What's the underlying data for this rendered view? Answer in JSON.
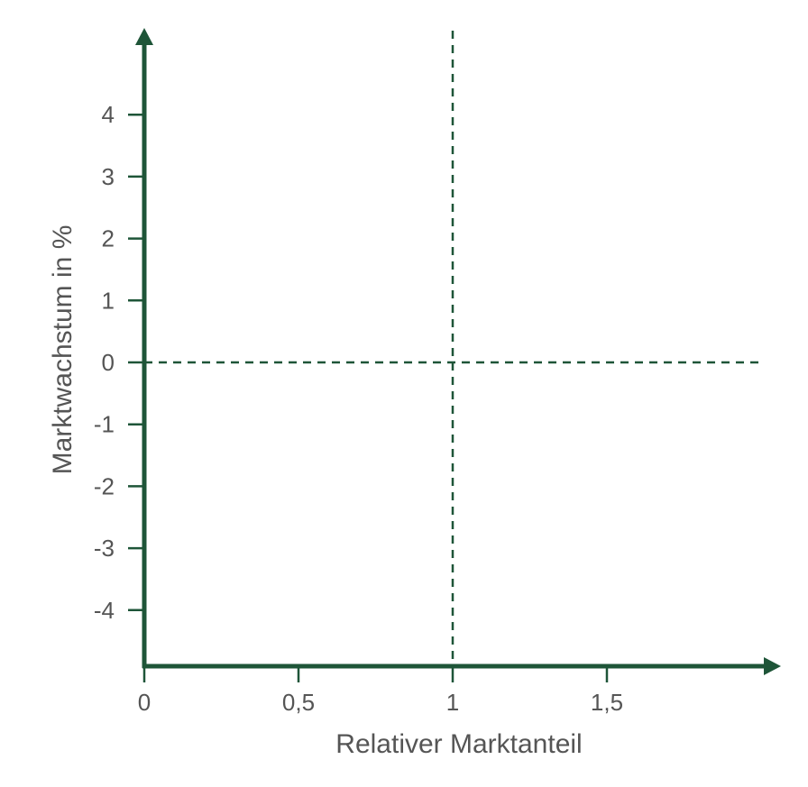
{
  "chart_data": {
    "type": "scatter",
    "title": "",
    "xlabel": "Relativer Marktanteil",
    "ylabel": "Marktwachstum in %",
    "xlim": [
      0,
      2
    ],
    "ylim": [
      -5,
      5
    ],
    "x_ticks": [
      {
        "value": 0,
        "label": "0"
      },
      {
        "value": 0.5,
        "label": "0,5"
      },
      {
        "value": 1,
        "label": "1"
      },
      {
        "value": 1.5,
        "label": "1,5"
      }
    ],
    "y_ticks": [
      {
        "value": 4,
        "label": "4"
      },
      {
        "value": 3,
        "label": "3"
      },
      {
        "value": 2,
        "label": "2"
      },
      {
        "value": 1,
        "label": "1"
      },
      {
        "value": 0,
        "label": "0"
      },
      {
        "value": -1,
        "label": "-1"
      },
      {
        "value": -2,
        "label": "-2"
      },
      {
        "value": -3,
        "label": "-3"
      },
      {
        "value": -4,
        "label": "-4"
      }
    ],
    "reference_lines": {
      "vertical_x": 1,
      "horizontal_y": 0,
      "style": "dashed"
    },
    "series": [],
    "grid": false,
    "legend": "none",
    "colors": {
      "axis": "#1e5538",
      "reference_line": "#1e5538",
      "text": "#555555"
    }
  }
}
